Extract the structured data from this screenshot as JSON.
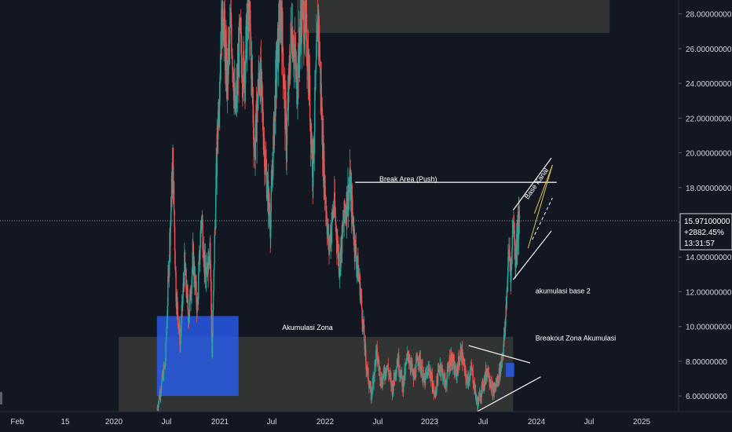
{
  "colors": {
    "background": "#131722",
    "up": "#26a69a",
    "down": "#ef5350",
    "zone": "#4a4d3f",
    "blue_box": "#2962ff",
    "text": "#d1d4dc",
    "line": "#ffffff",
    "trend": "#e0c44a"
  },
  "chart_data": {
    "type": "candlestick",
    "ylim": [
      5.1,
      28.8
    ],
    "y_ticks": [
      "6.00000000",
      "8.00000000",
      "10.00000000",
      "12.00000000",
      "14.00000000",
      "16.00000000",
      "18.00000000",
      "20.00000000",
      "22.00000000",
      "24.00000000",
      "26.00000000",
      "28.00000000"
    ],
    "x_ticks": [
      "Feb",
      "15",
      "2020",
      "Jul",
      "2021",
      "Jul",
      "2022",
      "Jul",
      "2023",
      "Jul",
      "2024",
      "Jul",
      "2025"
    ],
    "x_range": [
      2019.0,
      2025.4
    ],
    "close_path": [
      [
        2020.48,
        5.2
      ],
      [
        2020.52,
        6.6
      ],
      [
        2020.56,
        8.0
      ],
      [
        2020.6,
        15.0
      ],
      [
        2020.63,
        19.5
      ],
      [
        2020.66,
        12.0
      ],
      [
        2020.7,
        9.0
      ],
      [
        2020.74,
        13.5
      ],
      [
        2020.78,
        10.5
      ],
      [
        2020.82,
        14.0
      ],
      [
        2020.86,
        11.0
      ],
      [
        2020.9,
        16.5
      ],
      [
        2020.94,
        12.5
      ],
      [
        2020.98,
        15.0
      ],
      [
        2021.0,
        8.3
      ],
      [
        2021.02,
        14.0
      ],
      [
        2021.05,
        21.0
      ],
      [
        2021.08,
        26.0
      ],
      [
        2021.1,
        28.7
      ],
      [
        2021.14,
        24.0
      ],
      [
        2021.18,
        27.5
      ],
      [
        2021.22,
        22.0
      ],
      [
        2021.26,
        26.5
      ],
      [
        2021.3,
        24.5
      ],
      [
        2021.35,
        28.7
      ],
      [
        2021.4,
        20.0
      ],
      [
        2021.45,
        25.0
      ],
      [
        2021.5,
        19.5
      ],
      [
        2021.55,
        16.0
      ],
      [
        2021.6,
        24.0
      ],
      [
        2021.65,
        28.7
      ],
      [
        2021.7,
        20.5
      ],
      [
        2021.75,
        27.5
      ],
      [
        2021.8,
        24.0
      ],
      [
        2021.85,
        28.7
      ],
      [
        2021.9,
        26.0
      ],
      [
        2021.95,
        19.0
      ],
      [
        2022.0,
        28.0
      ],
      [
        2022.05,
        19.5
      ],
      [
        2022.1,
        14.5
      ],
      [
        2022.15,
        17.0
      ],
      [
        2022.2,
        13.5
      ],
      [
        2022.25,
        16.5
      ],
      [
        2022.3,
        18.2
      ],
      [
        2022.35,
        14.5
      ],
      [
        2022.4,
        12.0
      ],
      [
        2022.45,
        8.0
      ],
      [
        2022.5,
        6.0
      ],
      [
        2022.55,
        8.5
      ],
      [
        2022.6,
        6.8
      ],
      [
        2022.65,
        7.8
      ],
      [
        2022.7,
        6.4
      ],
      [
        2022.75,
        8.2
      ],
      [
        2022.8,
        6.6
      ],
      [
        2022.85,
        8.5
      ],
      [
        2022.9,
        7.0
      ],
      [
        2022.95,
        8.3
      ],
      [
        2023.0,
        6.8
      ],
      [
        2023.05,
        7.6
      ],
      [
        2023.1,
        6.0
      ],
      [
        2023.15,
        7.9
      ],
      [
        2023.2,
        6.6
      ],
      [
        2023.25,
        8.3
      ],
      [
        2023.3,
        7.2
      ],
      [
        2023.35,
        8.6
      ],
      [
        2023.4,
        6.8
      ],
      [
        2023.45,
        7.5
      ],
      [
        2023.5,
        5.5
      ],
      [
        2023.55,
        6.5
      ],
      [
        2023.6,
        7.6
      ],
      [
        2023.65,
        6.2
      ],
      [
        2023.7,
        7.0
      ],
      [
        2023.73,
        8.0
      ],
      [
        2023.76,
        9.5
      ],
      [
        2023.78,
        12.0
      ],
      [
        2023.8,
        14.5
      ],
      [
        2023.82,
        13.0
      ],
      [
        2023.84,
        16.5
      ],
      [
        2023.86,
        14.0
      ],
      [
        2023.88,
        15.5
      ],
      [
        2023.9,
        15.97
      ]
    ],
    "current_price": {
      "value": "15.97100000",
      "change": "+2882.45%",
      "countdown": "13:31:57"
    },
    "annotations": [
      {
        "text": "Break Area (Push)",
        "x": 2022.85,
        "y": 18.35
      },
      {
        "text": "Akumulasi Zona",
        "x": 2021.9,
        "y": 9.8
      },
      {
        "text": "Breakout Zona Akumulasi",
        "x": 2024.05,
        "y": 9.2
      },
      {
        "text": "akumulasi base 2",
        "x": 2024.05,
        "y": 11.9
      },
      {
        "text": "Base Kanal",
        "x": 2023.98,
        "y": 17.3
      }
    ],
    "zones": [
      {
        "kind": "gray",
        "x0": 2020.12,
        "x1": 2023.84,
        "y0": 5.1,
        "y1": 9.4
      },
      {
        "kind": "gray",
        "x0": 2021.8,
        "x1": 2024.75,
        "y0": 26.9,
        "y1": 28.8
      },
      {
        "kind": "blue",
        "x0": 2020.48,
        "x1": 2021.25,
        "y0": 6.0,
        "y1": 10.6
      },
      {
        "kind": "blue",
        "x0": 2023.77,
        "x1": 2023.85,
        "y0": 7.1,
        "y1": 7.9
      }
    ],
    "lines": [
      {
        "kind": "white",
        "x0": 2022.35,
        "y0": 18.3,
        "x1": 2024.25,
        "y1": 18.3
      },
      {
        "kind": "white",
        "x0": 2023.42,
        "y0": 8.9,
        "x1": 2024.0,
        "y1": 7.9
      },
      {
        "kind": "white",
        "x0": 2023.5,
        "y0": 5.1,
        "x1": 2024.1,
        "y1": 7.1
      },
      {
        "kind": "white",
        "x0": 2023.84,
        "y0": 16.7,
        "x1": 2024.2,
        "y1": 19.7
      },
      {
        "kind": "white",
        "x0": 2023.84,
        "y0": 12.7,
        "x1": 2024.2,
        "y1": 15.5
      },
      {
        "kind": "yellow",
        "x0": 2023.98,
        "y0": 14.5,
        "x1": 2024.21,
        "y1": 19.3
      },
      {
        "kind": "yellow",
        "x0": 2024.04,
        "y0": 16.5,
        "x1": 2024.21,
        "y1": 19.3
      }
    ]
  }
}
